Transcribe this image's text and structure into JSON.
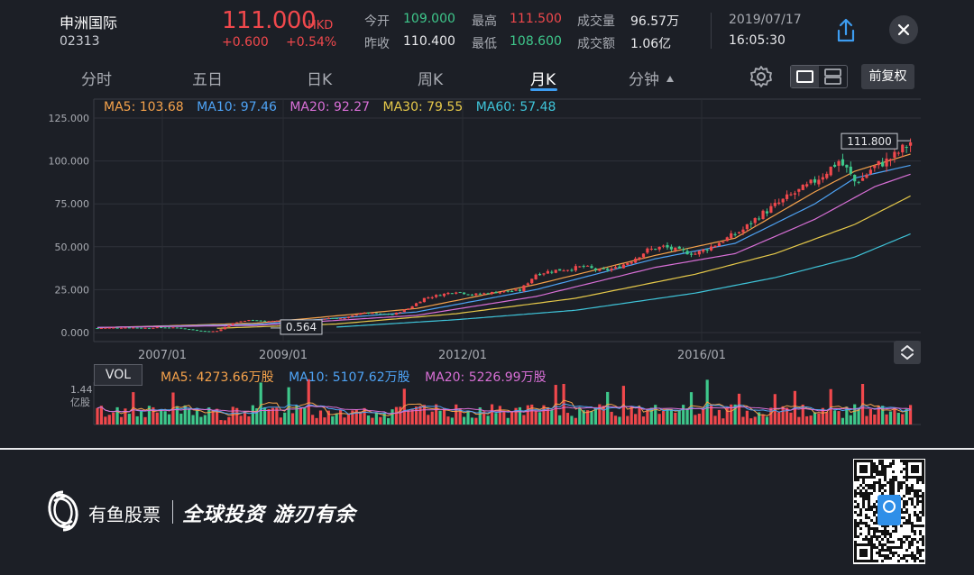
{
  "header": {
    "stock_name": "申洲国际",
    "stock_code": "02313",
    "price": "111.000",
    "currency": "HKD",
    "change": "+0.600",
    "change_pct": "+0.54%",
    "open_label": "今开",
    "open_val": "109.000",
    "high_label": "最高",
    "high_val": "111.500",
    "volume_label": "成交量",
    "volume_val": "96.57万",
    "prevclose_label": "昨收",
    "prevclose_val": "110.400",
    "low_label": "最低",
    "low_val": "108.600",
    "amount_label": "成交额",
    "amount_val": "1.06亿",
    "date": "2019/07/17",
    "time": "16:05:30",
    "share_icon": "share-icon",
    "close_icon": "close-icon"
  },
  "tabs": [
    {
      "label": "分时"
    },
    {
      "label": "五日"
    },
    {
      "label": "日K"
    },
    {
      "label": "周K"
    },
    {
      "label": "月K"
    },
    {
      "label": "分钟"
    }
  ],
  "active_tab": "月K",
  "toolbar": {
    "adjust_label": "前复权"
  },
  "ma_legend": {
    "ma5": "MA5: 103.68",
    "ma10": "MA10: 97.46",
    "ma20": "MA20: 92.27",
    "ma30": "MA30: 79.55",
    "ma60": "MA60: 57.48"
  },
  "vol_legend": {
    "badge": "VOL",
    "ma5": "MA5: 4273.66万股",
    "ma10": "MA10: 5107.62万股",
    "ma20": "MA20: 5226.99万股",
    "max_value": "1.44",
    "max_unit": "亿股"
  },
  "colors": {
    "up": "#f0484c",
    "down": "#3ec78b",
    "ma5": "#f5a24b",
    "ma10": "#4ea3f5",
    "ma20": "#d86fd6",
    "ma30": "#e6c94a",
    "ma60": "#3fc4d9",
    "accent": "#3d9cf0"
  },
  "chart_data": {
    "type": "candlestick",
    "title": "",
    "y_ticks": [
      "125.000",
      "100.000",
      "75.000",
      "50.000",
      "25.000",
      "0.000"
    ],
    "ylim": [
      0,
      125
    ],
    "x_ticks": [
      "2007/01",
      "2009/01",
      "2012/01",
      "2016/01"
    ],
    "max_marker": "111.800",
    "min_marker": "0.564",
    "price_path": [
      [
        0,
        2.6
      ],
      [
        4,
        2.8
      ],
      [
        8,
        2.9
      ],
      [
        12,
        2.7
      ],
      [
        16,
        3.0
      ],
      [
        20,
        2.8
      ],
      [
        24,
        1.5
      ],
      [
        28,
        0.6
      ],
      [
        30,
        0.9
      ],
      [
        34,
        5.5
      ],
      [
        38,
        7.5
      ],
      [
        42,
        6.5
      ],
      [
        46,
        7.0
      ],
      [
        50,
        6.5
      ],
      [
        54,
        7.0
      ],
      [
        58,
        8.5
      ],
      [
        62,
        8.2
      ],
      [
        66,
        11.5
      ],
      [
        70,
        11.0
      ],
      [
        74,
        10.5
      ],
      [
        78,
        14.0
      ],
      [
        82,
        20.0
      ],
      [
        86,
        22.0
      ],
      [
        90,
        24.0
      ],
      [
        94,
        22.0
      ],
      [
        98,
        23.0
      ],
      [
        102,
        24.0
      ],
      [
        106,
        24.5
      ],
      [
        110,
        34.0
      ],
      [
        114,
        36.0
      ],
      [
        118,
        37.0
      ],
      [
        122,
        38.5
      ],
      [
        126,
        36.0
      ],
      [
        130,
        37.5
      ],
      [
        134,
        42.0
      ],
      [
        138,
        48.0
      ],
      [
        142,
        50.0
      ],
      [
        146,
        47.5
      ],
      [
        150,
        46.0
      ],
      [
        154,
        50.0
      ],
      [
        158,
        55.0
      ],
      [
        162,
        60.0
      ],
      [
        166,
        68.0
      ],
      [
        170,
        74.0
      ],
      [
        174,
        80.0
      ],
      [
        178,
        85.0
      ],
      [
        182,
        92.0
      ],
      [
        186,
        100.0
      ],
      [
        188,
        95.0
      ],
      [
        190,
        88.0
      ],
      [
        192,
        90.0
      ],
      [
        194,
        95.0
      ],
      [
        196,
        98.0
      ],
      [
        198,
        100.0
      ],
      [
        200,
        103.0
      ],
      [
        202,
        107.0
      ],
      [
        204,
        111.0
      ]
    ],
    "ma_lines": {
      "ma5": [
        [
          0,
          2.8
        ],
        [
          40,
          5.5
        ],
        [
          80,
          14
        ],
        [
          110,
          28
        ],
        [
          140,
          45
        ],
        [
          160,
          55
        ],
        [
          180,
          82
        ],
        [
          190,
          94
        ],
        [
          204,
          104
        ]
      ],
      "ma10": [
        [
          0,
          2.9
        ],
        [
          40,
          4.8
        ],
        [
          80,
          12
        ],
        [
          110,
          25
        ],
        [
          140,
          43
        ],
        [
          160,
          52
        ],
        [
          180,
          75
        ],
        [
          190,
          90
        ],
        [
          204,
          97.5
        ]
      ],
      "ma20": [
        [
          0,
          3.0
        ],
        [
          40,
          4.2
        ],
        [
          80,
          10
        ],
        [
          110,
          21
        ],
        [
          140,
          38
        ],
        [
          160,
          46
        ],
        [
          180,
          66
        ],
        [
          195,
          85
        ],
        [
          204,
          92.3
        ]
      ],
      "ma30": [
        [
          30,
          2.5
        ],
        [
          60,
          5.0
        ],
        [
          90,
          11
        ],
        [
          120,
          20
        ],
        [
          150,
          34
        ],
        [
          170,
          46
        ],
        [
          190,
          63
        ],
        [
          204,
          79.6
        ]
      ],
      "ma60": [
        [
          60,
          3.2
        ],
        [
          90,
          7.5
        ],
        [
          120,
          13
        ],
        [
          150,
          23
        ],
        [
          170,
          32
        ],
        [
          190,
          44
        ],
        [
          204,
          57.5
        ]
      ]
    },
    "volume_count": 205
  }
}
